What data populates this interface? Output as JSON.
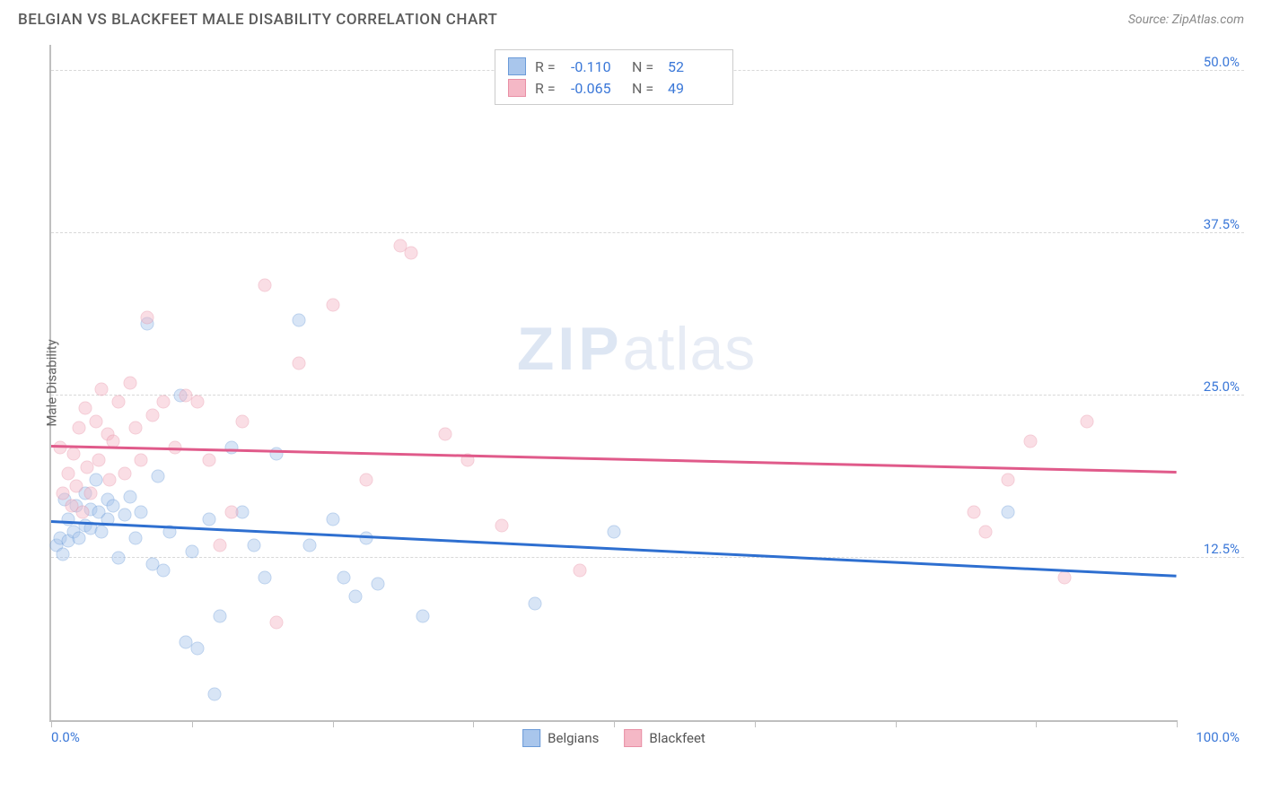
{
  "header": {
    "title": "BELGIAN VS BLACKFEET MALE DISABILITY CORRELATION CHART",
    "source": "Source: ZipAtlas.com"
  },
  "chart": {
    "type": "scatter",
    "ylabel": "Male Disability",
    "xlim": [
      0,
      100
    ],
    "ylim": [
      0,
      52
    ],
    "xtick_positions": [
      0,
      12.5,
      25,
      37.5,
      50,
      62.5,
      75,
      87.5,
      100
    ],
    "xaxis_label_left": "0.0%",
    "xaxis_label_right": "100.0%",
    "ygrid": [
      {
        "v": 12.5,
        "label": "12.5%"
      },
      {
        "v": 25.0,
        "label": "25.0%"
      },
      {
        "v": 37.5,
        "label": "37.5%"
      },
      {
        "v": 50.0,
        "label": "50.0%"
      }
    ],
    "background_color": "#ffffff",
    "grid_color": "#d8d8d8",
    "axis_color": "#bfbfbf",
    "tick_label_color": "#3b78d8",
    "marker_radius": 7.5,
    "marker_opacity": 0.45,
    "watermark": {
      "zip": "ZIP",
      "atlas": "atlas"
    },
    "series": [
      {
        "name": "Belgians",
        "color_fill": "#a9c6ec",
        "color_stroke": "#6b9bd8",
        "trend_color": "#2e6fd0",
        "trend": {
          "y_at_x0": 15.2,
          "y_at_x100": 11.0
        },
        "R": "-0.110",
        "N": "52",
        "points": [
          [
            0.5,
            13.5
          ],
          [
            0.8,
            14.0
          ],
          [
            1.0,
            12.8
          ],
          [
            1.2,
            17.0
          ],
          [
            1.5,
            15.5
          ],
          [
            1.5,
            13.8
          ],
          [
            2.0,
            14.5
          ],
          [
            2.2,
            16.5
          ],
          [
            2.5,
            14.0
          ],
          [
            3.0,
            17.5
          ],
          [
            3.0,
            15.0
          ],
          [
            3.5,
            16.2
          ],
          [
            3.5,
            14.8
          ],
          [
            4.0,
            18.5
          ],
          [
            4.2,
            16.0
          ],
          [
            4.5,
            14.5
          ],
          [
            5.0,
            17.0
          ],
          [
            5.0,
            15.5
          ],
          [
            5.5,
            16.5
          ],
          [
            6.0,
            12.5
          ],
          [
            6.5,
            15.8
          ],
          [
            7.0,
            17.2
          ],
          [
            7.5,
            14.0
          ],
          [
            8.0,
            16.0
          ],
          [
            8.5,
            30.5
          ],
          [
            9.0,
            12.0
          ],
          [
            9.5,
            18.8
          ],
          [
            10.0,
            11.5
          ],
          [
            10.5,
            14.5
          ],
          [
            11.5,
            25.0
          ],
          [
            12.0,
            6.0
          ],
          [
            12.5,
            13.0
          ],
          [
            13.0,
            5.5
          ],
          [
            14.0,
            15.5
          ],
          [
            14.5,
            2.0
          ],
          [
            15.0,
            8.0
          ],
          [
            16.0,
            21.0
          ],
          [
            17.0,
            16.0
          ],
          [
            18.0,
            13.5
          ],
          [
            19.0,
            11.0
          ],
          [
            20.0,
            20.5
          ],
          [
            22.0,
            30.8
          ],
          [
            23.0,
            13.5
          ],
          [
            25.0,
            15.5
          ],
          [
            26.0,
            11.0
          ],
          [
            27.0,
            9.5
          ],
          [
            28.0,
            14.0
          ],
          [
            29.0,
            10.5
          ],
          [
            33.0,
            8.0
          ],
          [
            43.0,
            9.0
          ],
          [
            50.0,
            14.5
          ],
          [
            85.0,
            16.0
          ]
        ]
      },
      {
        "name": "Blackfeet",
        "color_fill": "#f5b8c6",
        "color_stroke": "#e88fa5",
        "trend_color": "#e05a8a",
        "trend": {
          "y_at_x0": 21.0,
          "y_at_x100": 19.0
        },
        "R": "-0.065",
        "N": "49",
        "points": [
          [
            0.8,
            21.0
          ],
          [
            1.0,
            17.5
          ],
          [
            1.5,
            19.0
          ],
          [
            1.8,
            16.5
          ],
          [
            2.0,
            20.5
          ],
          [
            2.2,
            18.0
          ],
          [
            2.5,
            22.5
          ],
          [
            2.8,
            16.0
          ],
          [
            3.0,
            24.0
          ],
          [
            3.2,
            19.5
          ],
          [
            3.5,
            17.5
          ],
          [
            4.0,
            23.0
          ],
          [
            4.2,
            20.0
          ],
          [
            4.5,
            25.5
          ],
          [
            5.0,
            22.0
          ],
          [
            5.2,
            18.5
          ],
          [
            5.5,
            21.5
          ],
          [
            6.0,
            24.5
          ],
          [
            6.5,
            19.0
          ],
          [
            7.0,
            26.0
          ],
          [
            7.5,
            22.5
          ],
          [
            8.0,
            20.0
          ],
          [
            8.5,
            31.0
          ],
          [
            9.0,
            23.5
          ],
          [
            10.0,
            24.5
          ],
          [
            11.0,
            21.0
          ],
          [
            12.0,
            25.0
          ],
          [
            13.0,
            24.5
          ],
          [
            14.0,
            20.0
          ],
          [
            15.0,
            13.5
          ],
          [
            16.0,
            16.0
          ],
          [
            17.0,
            23.0
          ],
          [
            19.0,
            33.5
          ],
          [
            20.0,
            7.5
          ],
          [
            22.0,
            27.5
          ],
          [
            25.0,
            32.0
          ],
          [
            28.0,
            18.5
          ],
          [
            31.0,
            36.5
          ],
          [
            32.0,
            36.0
          ],
          [
            35.0,
            22.0
          ],
          [
            37.0,
            20.0
          ],
          [
            40.0,
            15.0
          ],
          [
            47.0,
            11.5
          ],
          [
            82.0,
            16.0
          ],
          [
            83.0,
            14.5
          ],
          [
            85.0,
            18.5
          ],
          [
            87.0,
            21.5
          ],
          [
            90.0,
            11.0
          ],
          [
            92.0,
            23.0
          ]
        ]
      }
    ],
    "legend_top": {
      "R_label": "R =",
      "N_label": "N ="
    },
    "legend_bottom": [
      {
        "label": "Belgians",
        "fill": "#a9c6ec",
        "stroke": "#6b9bd8"
      },
      {
        "label": "Blackfeet",
        "fill": "#f5b8c6",
        "stroke": "#e88fa5"
      }
    ]
  }
}
